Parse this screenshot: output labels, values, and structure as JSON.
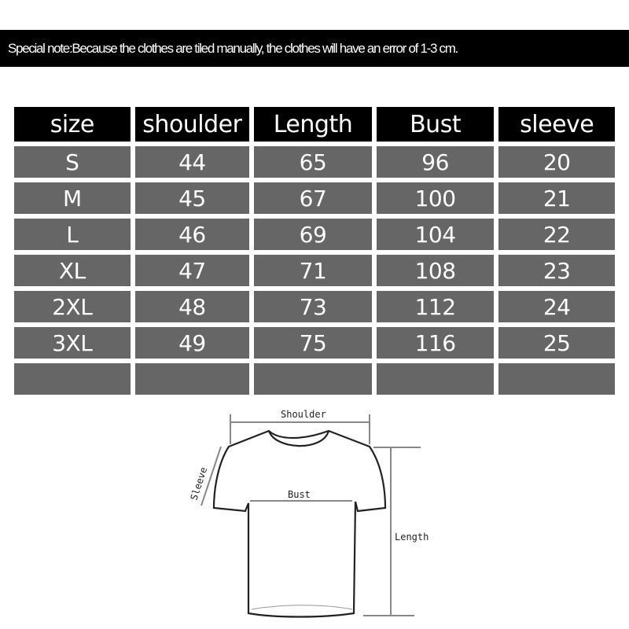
{
  "note": "Special note:Because the clothes are tiled manually, the clothes will have an error of 1-3 cm.",
  "table": {
    "headers": [
      "size",
      "shoulder",
      "Length",
      "Bust",
      "sleeve"
    ],
    "rows": [
      [
        "S",
        "44",
        "65",
        "96",
        "20"
      ],
      [
        "M",
        "45",
        "67",
        "100",
        "21"
      ],
      [
        "L",
        "46",
        "69",
        "104",
        "22"
      ],
      [
        "XL",
        "47",
        "71",
        "108",
        "23"
      ],
      [
        "2XL",
        "48",
        "73",
        "112",
        "24"
      ],
      [
        "3XL",
        "49",
        "75",
        "116",
        "25"
      ],
      [
        "",
        "",
        "",
        "",
        ""
      ]
    ]
  },
  "diagram": {
    "shoulder_label": "Shoulder",
    "sleeve_label": "Sleeve",
    "bust_label": "Bust",
    "length_label": "Length"
  },
  "colors": {
    "header_bg": "#000000",
    "row_bg": "#666666",
    "text": "#ffffff"
  }
}
